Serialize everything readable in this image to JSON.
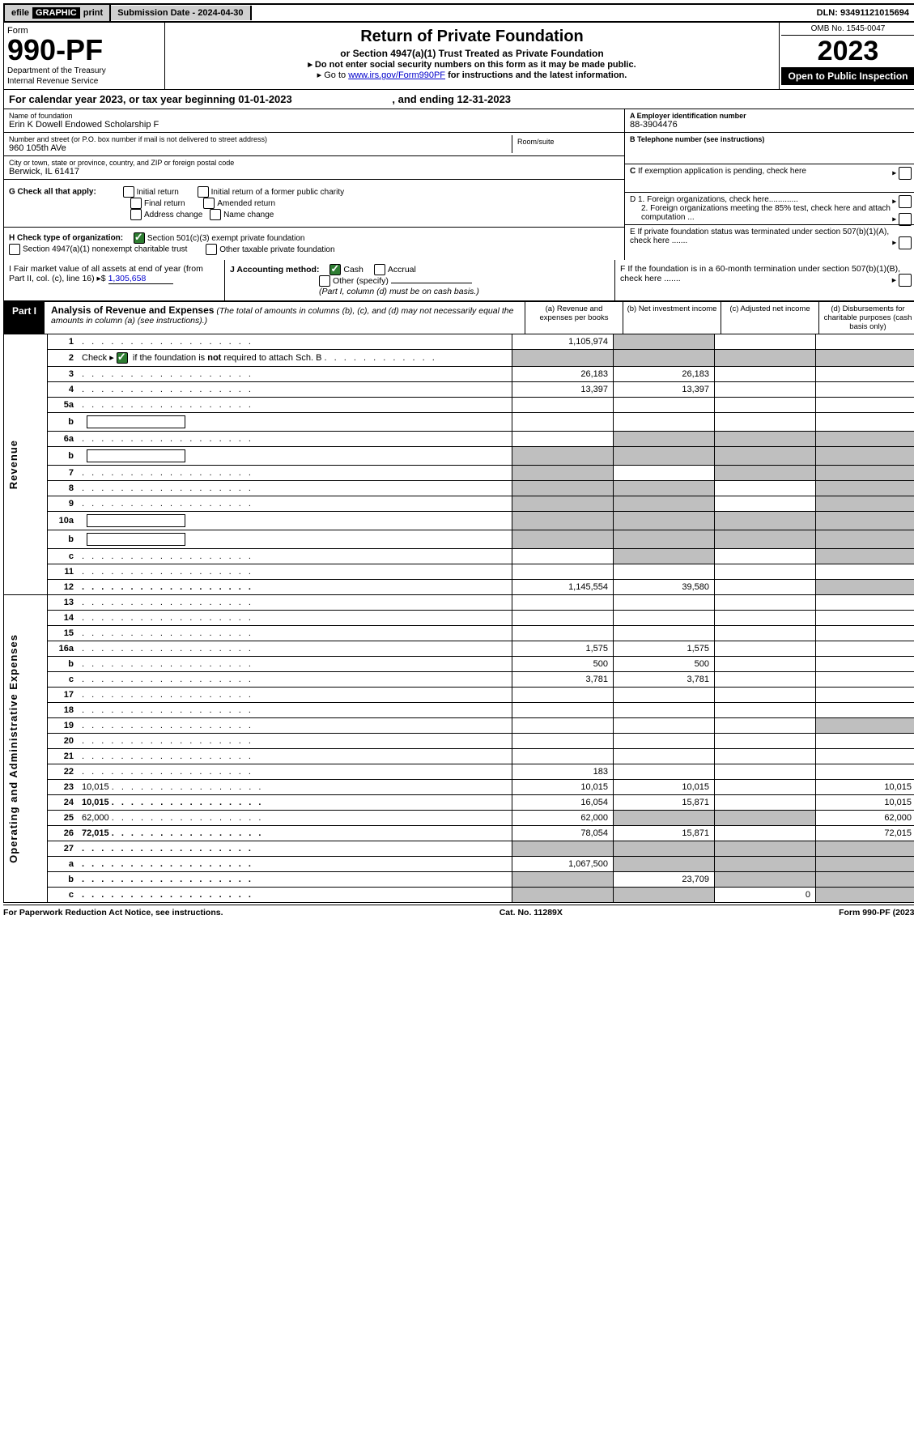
{
  "topbar": {
    "efile_prefix": "efile",
    "efile_graphic": "GRAPHIC",
    "efile_print": "print",
    "submission_label": "Submission Date - 2024-04-30",
    "dln": "DLN: 93491121015694"
  },
  "header": {
    "form_word": "Form",
    "form_number": "990-PF",
    "dept1": "Department of the Treasury",
    "dept2": "Internal Revenue Service",
    "title": "Return of Private Foundation",
    "subtitle": "or Section 4947(a)(1) Trust Treated as Private Foundation",
    "note1": "▸ Do not enter social security numbers on this form as it may be made public.",
    "note2_pre": "▸ Go to ",
    "note2_link": "www.irs.gov/Form990PF",
    "note2_post": " for instructions and the latest information.",
    "omb": "OMB No. 1545-0047",
    "year": "2023",
    "open": "Open to Public Inspection"
  },
  "yearline": {
    "pre": "For calendar year 2023, or tax year beginning ",
    "begin": "01-01-2023",
    "mid": " , and ending ",
    "end": "12-31-2023"
  },
  "info": {
    "name_label": "Name of foundation",
    "name": "Erin K Dowell Endowed Scholarship F",
    "addr_label": "Number and street (or P.O. box number if mail is not delivered to street address)",
    "addr": "960 105th AVe",
    "room_label": "Room/suite",
    "room": "",
    "city_label": "City or town, state or province, country, and ZIP or foreign postal code",
    "city": "Berwick, IL  61417",
    "ein_label": "A Employer identification number",
    "ein": "88-3904476",
    "phone_label": "B Telephone number (see instructions)",
    "phone": "",
    "c_label": "C If exemption application is pending, check here",
    "d1": "D 1. Foreign organizations, check here.............",
    "d2": "2. Foreign organizations meeting the 85% test, check here and attach computation ...",
    "e_label": "E  If private foundation status was terminated under section 507(b)(1)(A), check here .......",
    "f_label": "F  If the foundation is in a 60-month termination under section 507(b)(1)(B), check here ......."
  },
  "g": {
    "label": "G Check all that apply:",
    "opts": [
      "Initial return",
      "Initial return of a former public charity",
      "Final return",
      "Amended return",
      "Address change",
      "Name change"
    ]
  },
  "h": {
    "label": "H Check type of organization:",
    "opt1": "Section 501(c)(3) exempt private foundation",
    "opt2": "Section 4947(a)(1) nonexempt charitable trust",
    "opt3": "Other taxable private foundation"
  },
  "i": {
    "label": "I Fair market value of all assets at end of year (from Part II, col. (c), line 16) ▸$",
    "value": "1,305,658"
  },
  "j": {
    "label": "J Accounting method:",
    "cash": "Cash",
    "accrual": "Accrual",
    "other": "Other (specify)",
    "note": "(Part I, column (d) must be on cash basis.)"
  },
  "part1": {
    "tag": "Part I",
    "title": "Analysis of Revenue and Expenses",
    "sub": " (The total of amounts in columns (b), (c), and (d) may not necessarily equal the amounts in column (a) (see instructions).)",
    "col_a": "(a) Revenue and expenses per books",
    "col_b": "(b) Net investment income",
    "col_c": "(c) Adjusted net income",
    "col_d": "(d) Disbursements for charitable purposes (cash basis only)"
  },
  "sidelabels": {
    "revenue": "Revenue",
    "expenses": "Operating and Administrative Expenses"
  },
  "rows": [
    {
      "n": "1",
      "d": "",
      "a": "1,105,974",
      "b": "",
      "c": "",
      "grey_c": false,
      "grey_d": false,
      "grey_b": true,
      "b_grey": false
    },
    {
      "n": "2",
      "d": "",
      "a": "",
      "b": "",
      "c": "",
      "grey_a": true,
      "grey_b": true,
      "grey_c": true,
      "grey_d": true
    },
    {
      "n": "3",
      "d": "",
      "a": "26,183",
      "b": "26,183",
      "c": ""
    },
    {
      "n": "4",
      "d": "",
      "a": "13,397",
      "b": "13,397",
      "c": ""
    },
    {
      "n": "5a",
      "d": "",
      "a": "",
      "b": "",
      "c": ""
    },
    {
      "n": "b",
      "d": "",
      "a": "",
      "b": "",
      "c": "",
      "grey_a": false,
      "inline_box": true
    },
    {
      "n": "6a",
      "d": "",
      "a": "",
      "b": "",
      "c": "",
      "grey_b": true,
      "grey_c": true,
      "grey_d": true
    },
    {
      "n": "b",
      "d": "",
      "a": "",
      "b": "",
      "c": "",
      "grey_a": true,
      "grey_b": true,
      "grey_c": true,
      "grey_d": true,
      "inline_box": true
    },
    {
      "n": "7",
      "d": "",
      "a": "",
      "b": "",
      "c": "",
      "grey_a": true,
      "grey_c": true,
      "grey_d": true
    },
    {
      "n": "8",
      "d": "",
      "a": "",
      "b": "",
      "c": "",
      "grey_a": true,
      "grey_b": true,
      "grey_d": true
    },
    {
      "n": "9",
      "d": "",
      "a": "",
      "b": "",
      "c": "",
      "grey_a": true,
      "grey_b": true,
      "grey_d": true
    },
    {
      "n": "10a",
      "d": "",
      "a": "",
      "b": "",
      "c": "",
      "grey_a": true,
      "grey_b": true,
      "grey_c": true,
      "grey_d": true,
      "inline_box": true
    },
    {
      "n": "b",
      "d": "",
      "a": "",
      "b": "",
      "c": "",
      "grey_a": true,
      "grey_b": true,
      "grey_c": true,
      "grey_d": true,
      "inline_box": true
    },
    {
      "n": "c",
      "d": "",
      "a": "",
      "b": "",
      "c": "",
      "grey_b": true,
      "grey_d": true
    },
    {
      "n": "11",
      "d": "",
      "a": "",
      "b": "",
      "c": ""
    },
    {
      "n": "12",
      "d": "",
      "a": "1,145,554",
      "b": "39,580",
      "c": "",
      "bold": true,
      "grey_d": true
    },
    {
      "n": "13",
      "d": "",
      "a": "",
      "b": "",
      "c": ""
    },
    {
      "n": "14",
      "d": "",
      "a": "",
      "b": "",
      "c": ""
    },
    {
      "n": "15",
      "d": "",
      "a": "",
      "b": "",
      "c": ""
    },
    {
      "n": "16a",
      "d": "",
      "a": "1,575",
      "b": "1,575",
      "c": ""
    },
    {
      "n": "b",
      "d": "",
      "a": "500",
      "b": "500",
      "c": ""
    },
    {
      "n": "c",
      "d": "",
      "a": "3,781",
      "b": "3,781",
      "c": ""
    },
    {
      "n": "17",
      "d": "",
      "a": "",
      "b": "",
      "c": ""
    },
    {
      "n": "18",
      "d": "",
      "a": "",
      "b": "",
      "c": ""
    },
    {
      "n": "19",
      "d": "",
      "a": "",
      "b": "",
      "c": "",
      "grey_d": true
    },
    {
      "n": "20",
      "d": "",
      "a": "",
      "b": "",
      "c": ""
    },
    {
      "n": "21",
      "d": "",
      "a": "",
      "b": "",
      "c": ""
    },
    {
      "n": "22",
      "d": "",
      "a": "183",
      "b": "",
      "c": ""
    },
    {
      "n": "23",
      "d": "10,015",
      "a": "10,015",
      "b": "10,015",
      "c": ""
    },
    {
      "n": "24",
      "d": "10,015",
      "a": "16,054",
      "b": "15,871",
      "c": "",
      "bold": true
    },
    {
      "n": "25",
      "d": "62,000",
      "a": "62,000",
      "b": "",
      "c": "",
      "grey_b": true,
      "grey_c": true
    },
    {
      "n": "26",
      "d": "72,015",
      "a": "78,054",
      "b": "15,871",
      "c": "",
      "bold": true
    },
    {
      "n": "27",
      "d": "",
      "a": "",
      "b": "",
      "c": "",
      "grey_a": true,
      "grey_b": true,
      "grey_c": true,
      "grey_d": true,
      "bold": true
    },
    {
      "n": "a",
      "d": "",
      "a": "1,067,500",
      "b": "",
      "c": "",
      "bold": true,
      "grey_b": true,
      "grey_c": true,
      "grey_d": true
    },
    {
      "n": "b",
      "d": "",
      "a": "",
      "b": "23,709",
      "c": "",
      "bold": true,
      "grey_a": true,
      "grey_c": true,
      "grey_d": true
    },
    {
      "n": "c",
      "d": "",
      "a": "",
      "b": "",
      "c": "0",
      "bold": true,
      "grey_a": true,
      "grey_b": true,
      "grey_d": true
    }
  ],
  "footer": {
    "left": "For Paperwork Reduction Act Notice, see instructions.",
    "mid": "Cat. No. 11289X",
    "right": "Form 990-PF (2023)"
  },
  "colors": {
    "grey": "#bfbfbf",
    "link": "#0000cc",
    "green": "#2e7d32"
  }
}
